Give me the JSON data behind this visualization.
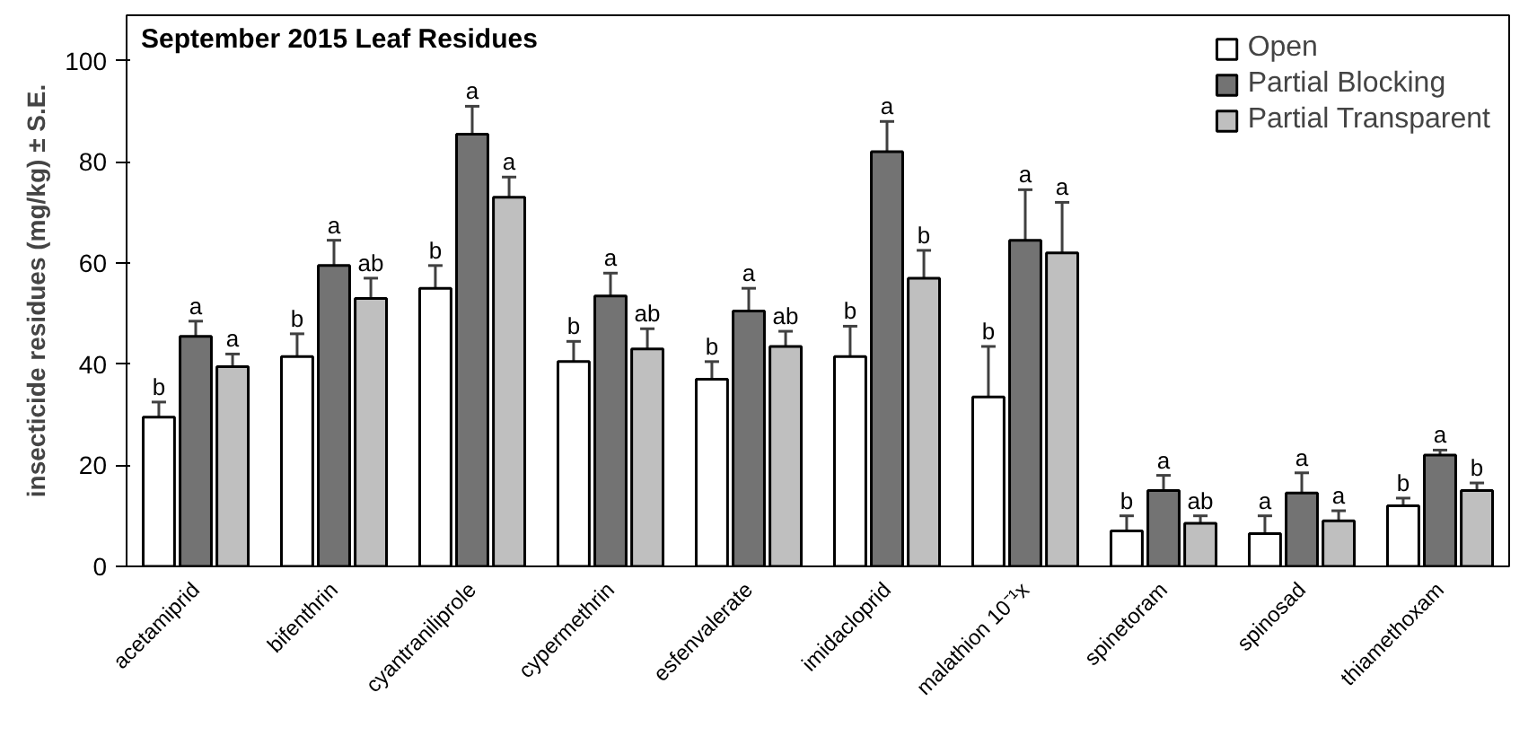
{
  "chart_data": {
    "type": "bar",
    "title": "September 2015 Leaf Residues",
    "ylabel": "insecticide residues (mg/kg) ± S.E.",
    "categories": [
      "acetamiprid",
      "bifenthrin",
      "cyantraniliprole",
      "cypermethrin",
      "esfenvalerate",
      "imidacloprid",
      "malathion 10⁻¹x",
      "spinetoram",
      "spinosad",
      "thiamethoxam"
    ],
    "series": [
      {
        "name": "Open",
        "color": "#ffffff",
        "values": [
          29.5,
          41.5,
          55,
          40.5,
          37,
          41.5,
          33.5,
          7,
          6.5,
          12
        ],
        "errors": [
          3,
          4.5,
          4.5,
          4,
          3.5,
          6,
          10,
          3,
          3.5,
          1.5
        ],
        "value_labels": [
          "b",
          "b",
          "b",
          "b",
          "b",
          "b",
          "b",
          "b",
          "a",
          "b"
        ]
      },
      {
        "name": "Partial Blocking",
        "color": "#737373",
        "values": [
          45.5,
          59.5,
          85.5,
          53.5,
          50.5,
          82,
          64.5,
          15,
          14.5,
          22
        ],
        "errors": [
          3,
          5,
          5.5,
          4.5,
          4.5,
          6,
          10,
          3,
          4,
          1
        ],
        "value_labels": [
          "a",
          "a",
          "a",
          "a",
          "a",
          "a",
          "a",
          "a",
          "a",
          "a"
        ]
      },
      {
        "name": "Partial Transparent",
        "color": "#bfbfbf",
        "values": [
          39.5,
          53,
          73,
          43,
          43.5,
          57,
          62,
          8.5,
          9,
          15
        ],
        "errors": [
          2.5,
          4,
          4,
          4,
          3,
          5.5,
          10,
          1.5,
          2,
          1.5
        ],
        "value_labels": [
          "a",
          "ab",
          "a",
          "ab",
          "ab",
          "b",
          "a",
          "ab",
          "a",
          "b"
        ]
      }
    ],
    "ylim": [
      0,
      109
    ],
    "yticks": [
      0,
      20,
      40,
      60,
      80,
      100
    ],
    "grid": false,
    "legend": "top right"
  }
}
